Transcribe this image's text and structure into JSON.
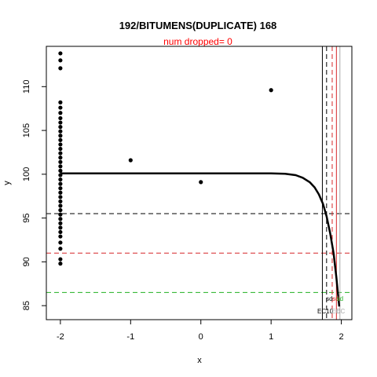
{
  "chart_data": {
    "type": "scatter",
    "title": "192/BITUMENS(DUPLICATE) 168",
    "subtitle": "num dropped= 0",
    "xlabel": "x",
    "ylabel": "y",
    "xlim": [
      -2.2,
      2.15
    ],
    "ylim": [
      83.4,
      114.6
    ],
    "x_ticks": [
      -2,
      -1,
      0,
      1,
      2
    ],
    "x_tick_labels": [
      "-2",
      "-1",
      "0",
      "1",
      "2"
    ],
    "y_ticks": [
      85,
      90,
      95,
      100,
      105,
      110
    ],
    "y_tick_labels": [
      "85",
      "90",
      "95",
      "100",
      "105",
      "110"
    ],
    "grid": false,
    "points": [
      {
        "x": -2,
        "y": 113.8
      },
      {
        "x": -2,
        "y": 113.0
      },
      {
        "x": -2,
        "y": 112.1
      },
      {
        "x": -2,
        "y": 108.2
      },
      {
        "x": -2,
        "y": 107.6
      },
      {
        "x": -2,
        "y": 107.0
      },
      {
        "x": -2,
        "y": 106.4
      },
      {
        "x": -2,
        "y": 105.9
      },
      {
        "x": -2,
        "y": 105.4
      },
      {
        "x": -2,
        "y": 104.9
      },
      {
        "x": -2,
        "y": 104.4
      },
      {
        "x": -2,
        "y": 103.9
      },
      {
        "x": -2,
        "y": 103.4
      },
      {
        "x": -2,
        "y": 102.9
      },
      {
        "x": -2,
        "y": 102.4
      },
      {
        "x": -2,
        "y": 101.9
      },
      {
        "x": -2,
        "y": 101.4
      },
      {
        "x": -2,
        "y": 100.9
      },
      {
        "x": -2,
        "y": 100.4
      },
      {
        "x": -2,
        "y": 99.9
      },
      {
        "x": -2,
        "y": 99.4
      },
      {
        "x": -2,
        "y": 98.9
      },
      {
        "x": -2,
        "y": 98.4
      },
      {
        "x": -2,
        "y": 97.9
      },
      {
        "x": -2,
        "y": 97.4
      },
      {
        "x": -2,
        "y": 96.9
      },
      {
        "x": -2,
        "y": 96.4
      },
      {
        "x": -2,
        "y": 95.9
      },
      {
        "x": -2,
        "y": 95.4
      },
      {
        "x": -2,
        "y": 94.9
      },
      {
        "x": -2,
        "y": 94.4
      },
      {
        "x": -2,
        "y": 93.9
      },
      {
        "x": -2,
        "y": 93.4
      },
      {
        "x": -2,
        "y": 92.9
      },
      {
        "x": -2,
        "y": 92.2
      },
      {
        "x": -2,
        "y": 91.5
      },
      {
        "x": -2,
        "y": 90.3
      },
      {
        "x": -2,
        "y": 89.8
      },
      {
        "x": -1,
        "y": 101.6
      },
      {
        "x": 0,
        "y": 99.1
      },
      {
        "x": 1,
        "y": 109.6
      }
    ],
    "fit_curve": {
      "color": "#000000",
      "x": [
        -2,
        -1.5,
        -1,
        -0.5,
        0,
        0.5,
        1,
        1.2,
        1.35,
        1.45,
        1.55,
        1.62,
        1.68,
        1.74,
        1.79,
        1.84,
        1.89,
        1.93,
        1.97
      ],
      "y": [
        100.1,
        100.1,
        100.1,
        100.1,
        100.1,
        100.1,
        100.1,
        100.05,
        99.9,
        99.6,
        99.1,
        98.5,
        97.7,
        96.6,
        95.2,
        93.3,
        91.0,
        88.2,
        84.9
      ]
    },
    "reference_lines": [
      {
        "orientation": "horizontal",
        "value": 95.5,
        "color": "#000000",
        "style": "dashed"
      },
      {
        "orientation": "horizontal",
        "value": 91.0,
        "color": "#d62728",
        "style": "dashed"
      },
      {
        "orientation": "horizontal",
        "value": 86.5,
        "color": "#22b022",
        "style": "dashed"
      },
      {
        "orientation": "vertical",
        "value": 1.73,
        "color": "#000000",
        "style": "solid"
      },
      {
        "orientation": "vertical",
        "value": 1.79,
        "color": "#000000",
        "style": "dashed"
      },
      {
        "orientation": "vertical",
        "value": 1.87,
        "color": "#d62728",
        "style": "dashed"
      },
      {
        "orientation": "vertical",
        "value": 1.93,
        "color": "#d62728",
        "style": "solid"
      },
      {
        "orientation": "vertical",
        "value": 1.98,
        "color": "#aaaaaa",
        "style": "solid"
      }
    ],
    "annotations": [
      {
        "text": "sd",
        "x": 1.83,
        "y": 85.8,
        "color": "#000000"
      },
      {
        "text": "sd",
        "x": 1.92,
        "y": 85.8,
        "color": "#d62728"
      },
      {
        "text": "sd",
        "x": 1.98,
        "y": 85.8,
        "color": "#22b022"
      },
      {
        "text": "EC10",
        "x": 1.77,
        "y": 84.4,
        "color": "#000000"
      },
      {
        "text": "EC",
        "x": 1.92,
        "y": 84.4,
        "color": "#aaaaaa"
      },
      {
        "text": "EC",
        "x": 1.99,
        "y": 84.4,
        "color": "#aaaaaa"
      }
    ],
    "colors": {
      "title": "#000000",
      "subtitle": "#ff0000",
      "points": "#000000",
      "axis": "#000000"
    }
  }
}
